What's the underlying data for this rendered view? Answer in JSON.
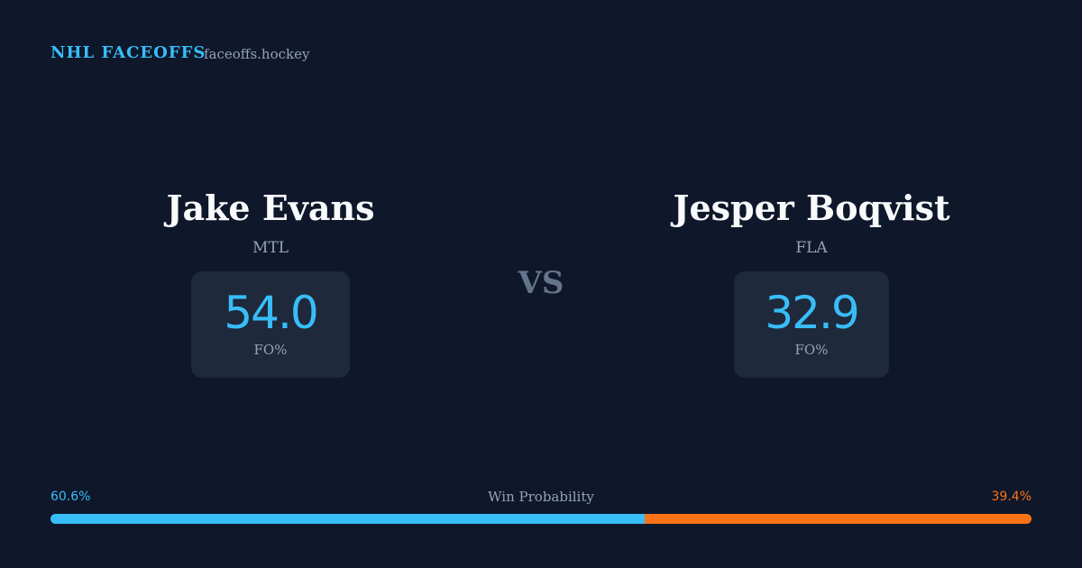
{
  "header": {
    "title": "NHL FACEOFFS",
    "site": "faceoffs.hockey"
  },
  "players": [
    {
      "name": "Jake Evans",
      "team": "MTL",
      "stat_value": "54.0",
      "stat_label": "FO%"
    },
    {
      "name": "Jesper Boqvist",
      "team": "FLA",
      "stat_value": "32.9",
      "stat_label": "FO%"
    }
  ],
  "versus": "VS",
  "win_probability": {
    "label": "Win Probability",
    "values": [
      60.6,
      39.4
    ],
    "value_labels": [
      "60.6%",
      "39.4%"
    ],
    "colors": [
      "#38bdf8",
      "#f97316"
    ]
  }
}
